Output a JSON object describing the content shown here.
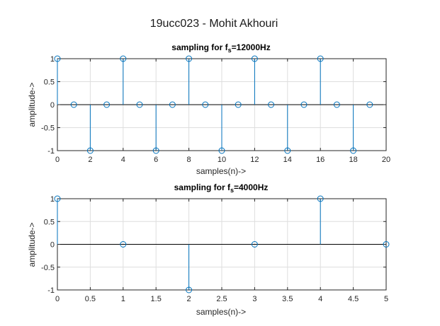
{
  "figure": {
    "suptitle": "19ucc023 - Mohit Akhouri"
  },
  "colors": {
    "stem": "#0072BD",
    "axis": "#262626",
    "grid": "#dedede",
    "background": "#ffffff"
  },
  "chart_data": [
    {
      "type": "stem",
      "title_main": "sampling for f",
      "title_sub": "s",
      "title_rest": "=12000Hz",
      "xlabel": "samples(n)->",
      "ylabel": "amplitude->",
      "xlim": [
        0,
        20
      ],
      "ylim": [
        -1,
        1
      ],
      "xticks": [
        "0",
        "2",
        "4",
        "6",
        "8",
        "10",
        "12",
        "14",
        "16",
        "18",
        "20"
      ],
      "yticks": [
        "-1",
        "-0.5",
        "0",
        "0.5",
        "1"
      ],
      "grid": true,
      "x": [
        0,
        1,
        2,
        3,
        4,
        5,
        6,
        7,
        8,
        9,
        10,
        11,
        12,
        13,
        14,
        15,
        16,
        17,
        18,
        19
      ],
      "y": [
        1,
        0,
        -1,
        0,
        1,
        0,
        -1,
        0,
        1,
        0,
        -1,
        0,
        1,
        0,
        -1,
        0,
        1,
        0,
        -1,
        0
      ]
    },
    {
      "type": "stem",
      "title_main": "sampling for f",
      "title_sub": "s",
      "title_rest": "=4000Hz",
      "xlabel": "samples(n)->",
      "ylabel": "amplitude->",
      "xlim": [
        0,
        5
      ],
      "ylim": [
        -1,
        1
      ],
      "xticks": [
        "0",
        "0.5",
        "1",
        "1.5",
        "2",
        "2.5",
        "3",
        "3.5",
        "4",
        "4.5",
        "5"
      ],
      "yticks": [
        "-1",
        "-0.5",
        "0",
        "0.5",
        "1"
      ],
      "grid": true,
      "x": [
        0,
        1,
        2,
        3,
        4,
        5
      ],
      "y": [
        1,
        0,
        -1,
        0,
        1,
        0
      ]
    }
  ]
}
